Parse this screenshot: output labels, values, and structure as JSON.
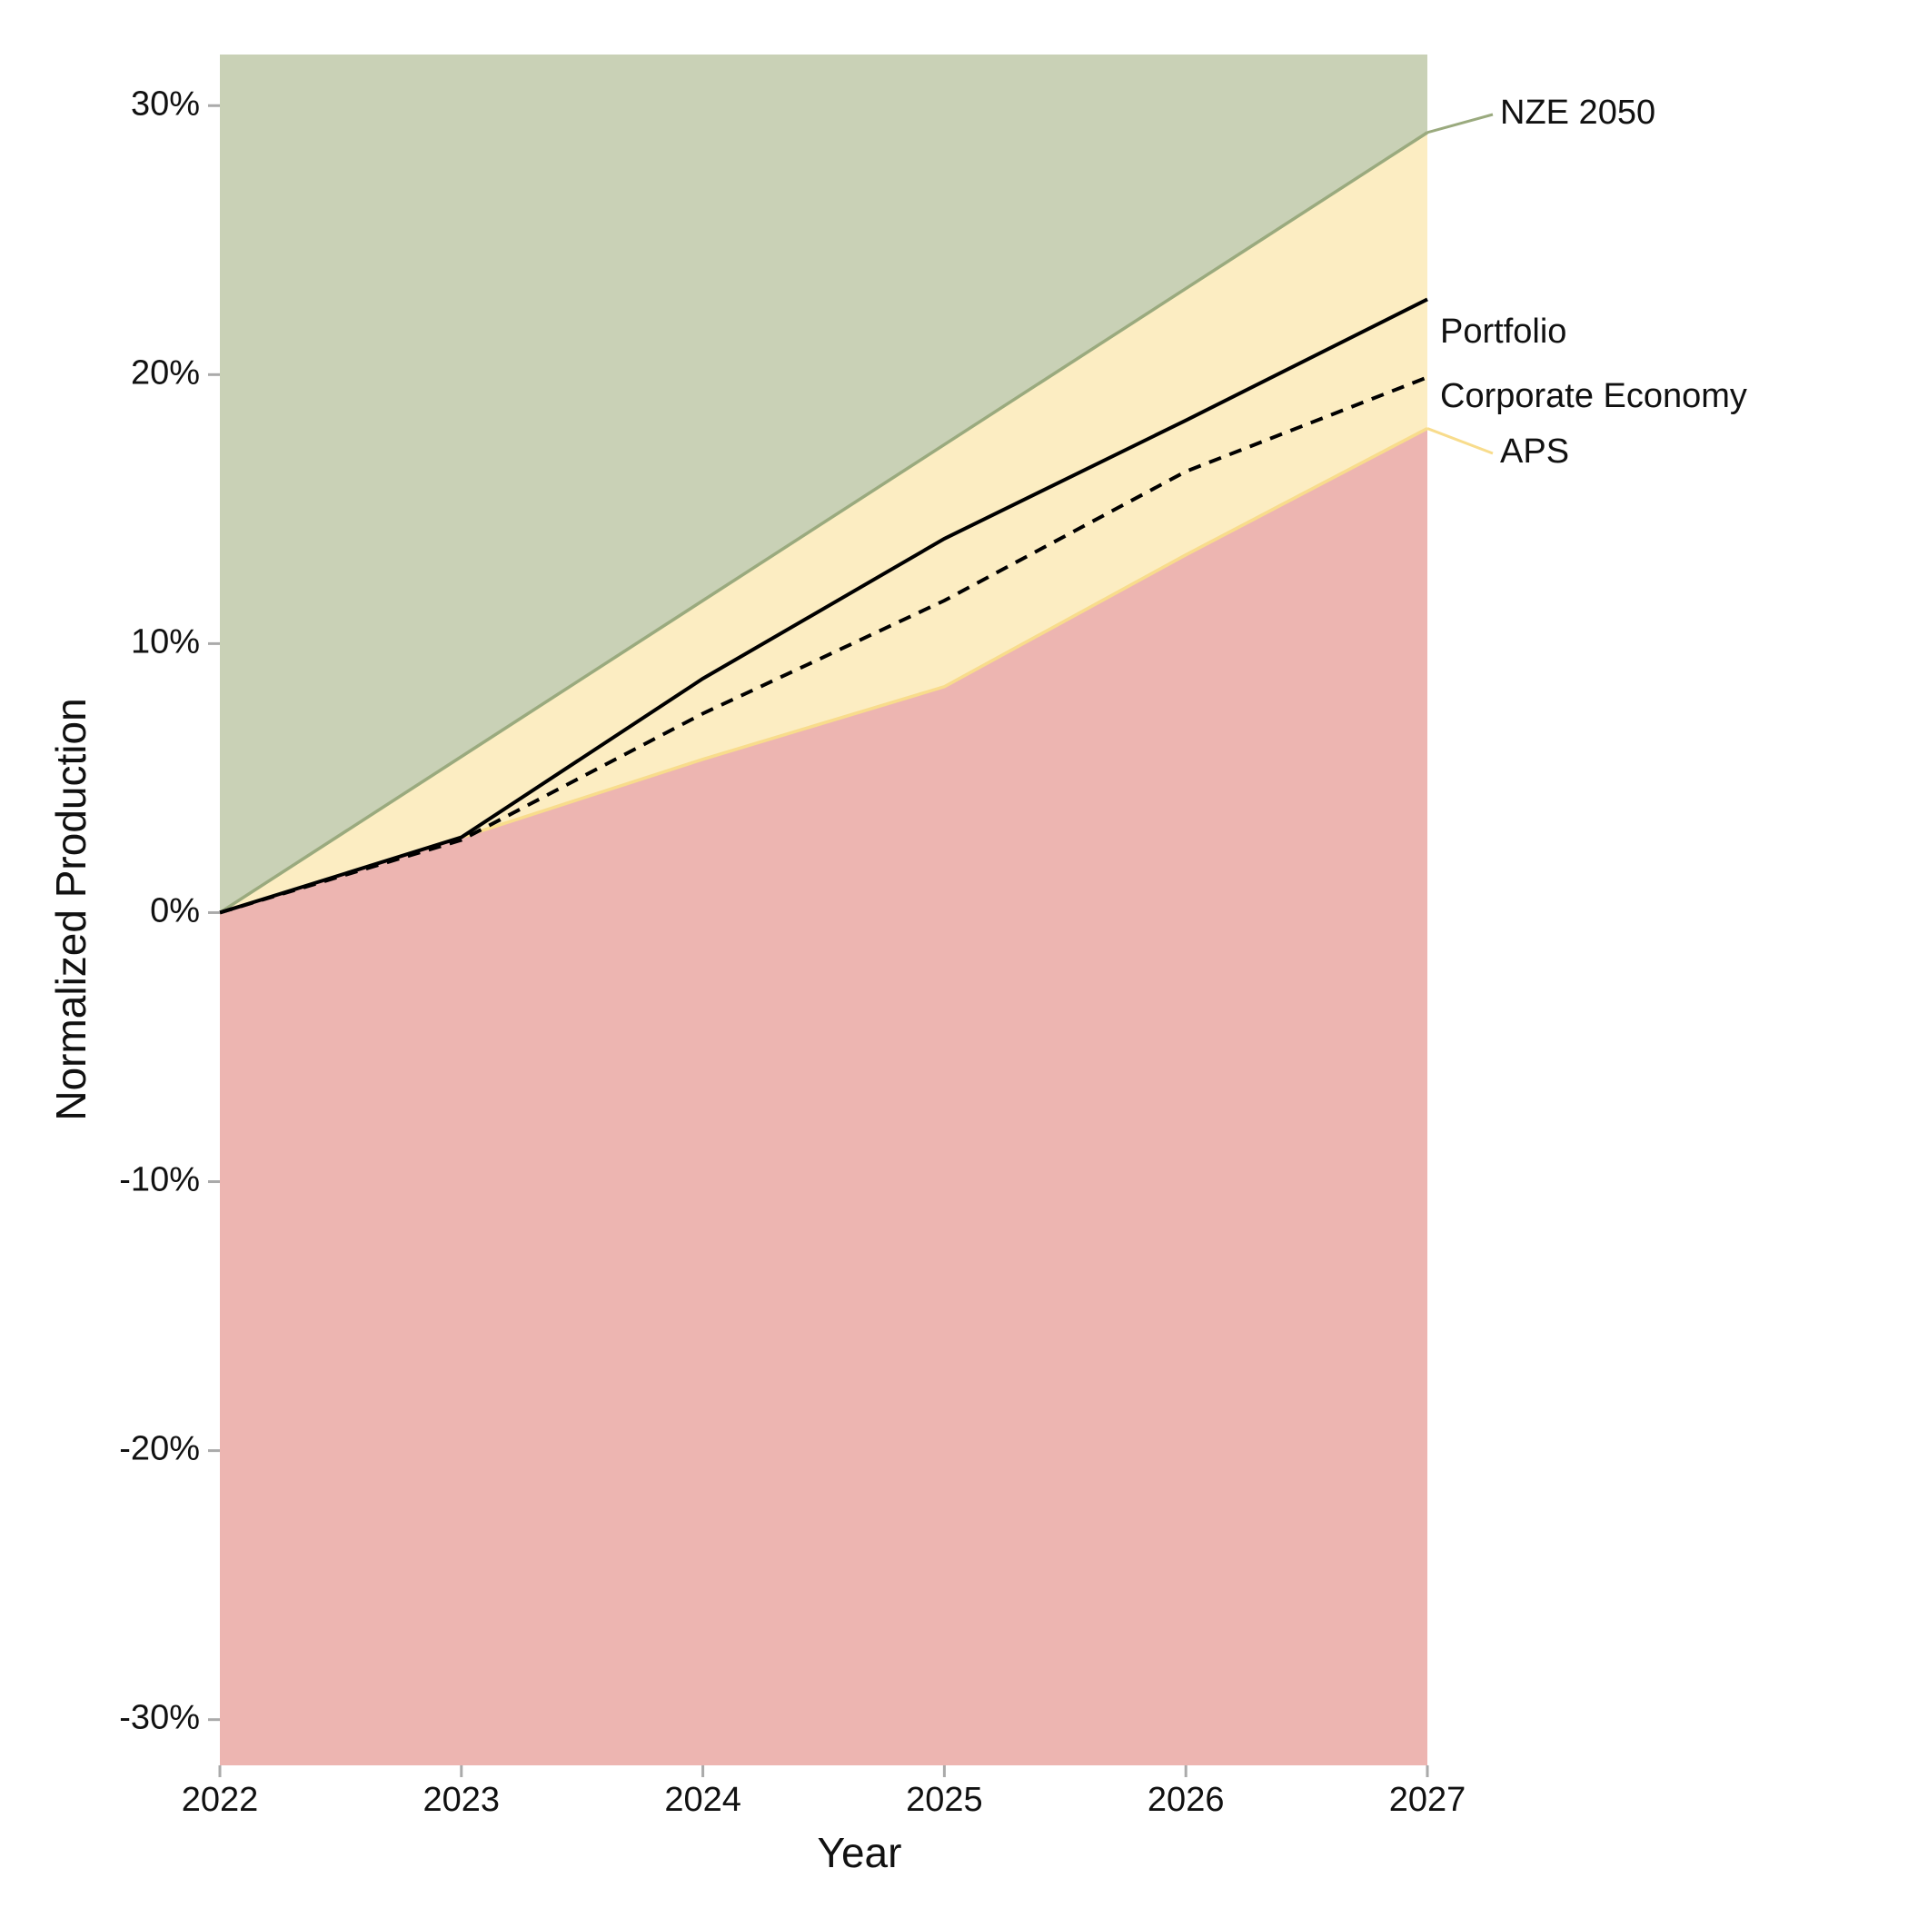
{
  "chart_data": {
    "type": "area-line",
    "x_label": "Year",
    "y_label": "Normalized Production",
    "x": [
      2022,
      2023,
      2024,
      2025,
      2026,
      2027
    ],
    "xlim": [
      2022,
      2027
    ],
    "xticks": [
      2022,
      2023,
      2024,
      2025,
      2026,
      2027
    ],
    "ylim": [
      -31.7,
      31.9
    ],
    "yticks": [
      {
        "value": -30,
        "label": "-30%"
      },
      {
        "value": -20,
        "label": "-20%"
      },
      {
        "value": -10,
        "label": "-10%"
      },
      {
        "value": 0,
        "label": "0%"
      },
      {
        "value": 10,
        "label": "10%"
      },
      {
        "value": 20,
        "label": "20%"
      },
      {
        "value": 30,
        "label": "30%"
      }
    ],
    "below_fill": "#edb5b1",
    "scenarios": [
      {
        "name": "APS",
        "color": "#f8dc8c",
        "fill": "#fcedc2",
        "values": [
          0,
          2.8,
          5.7,
          8.4,
          13.3,
          18.0
        ]
      },
      {
        "name": "NZE 2050",
        "color": "#9aaa7e",
        "fill": "#c9d1b6",
        "values": [
          0,
          5.8,
          11.6,
          17.4,
          23.2,
          29.0
        ]
      }
    ],
    "series": [
      {
        "name": "Portfolio",
        "color": "#000000",
        "dashed": false,
        "values": [
          0,
          2.8,
          8.7,
          13.9,
          18.3,
          22.8
        ]
      },
      {
        "name": "Corporate Economy",
        "color": "#000000",
        "dashed": true,
        "values": [
          0,
          2.7,
          7.4,
          11.6,
          16.4,
          19.9
        ]
      }
    ]
  }
}
